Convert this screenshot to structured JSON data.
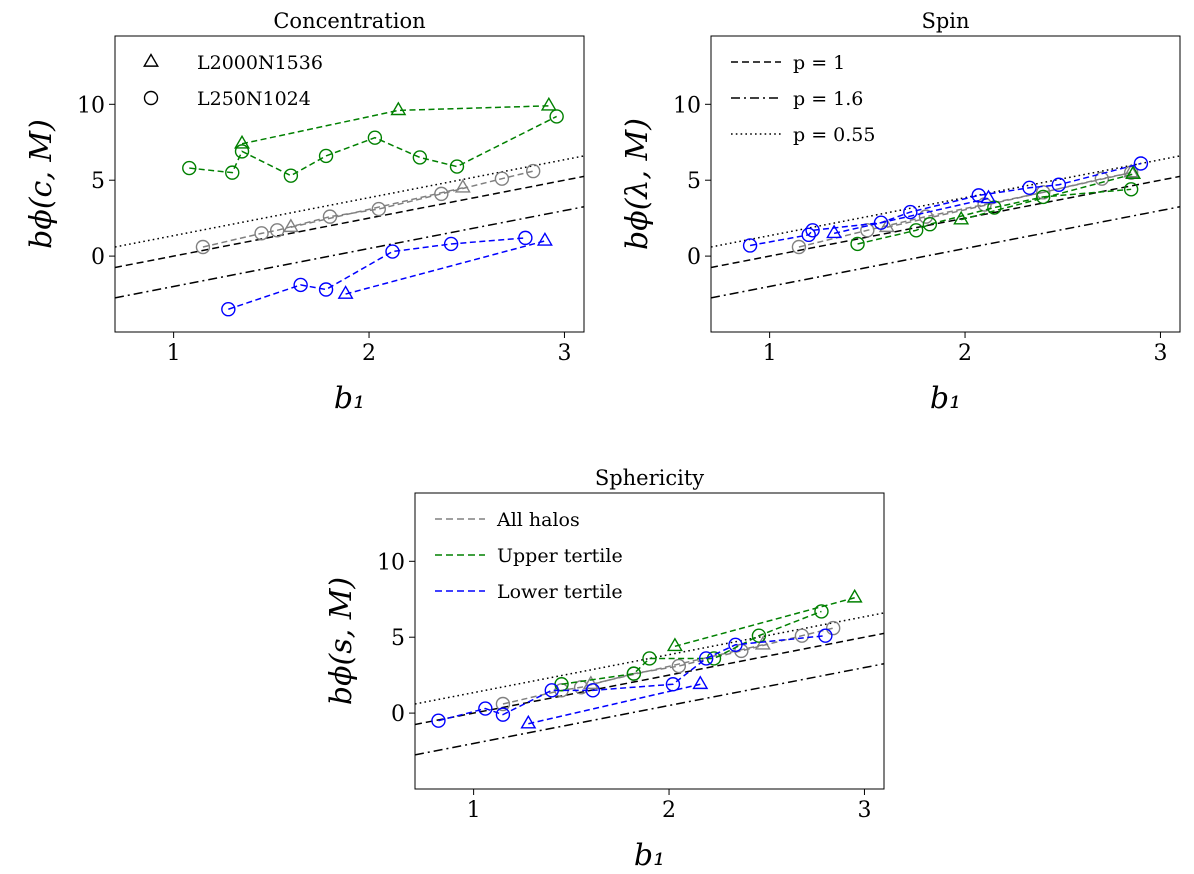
{
  "chart_data": [
    {
      "type": "line",
      "title": "Concentration",
      "xlabel": "b₁",
      "ylabel": "bϕ(c, M)",
      "xlim": [
        0.7,
        3.1
      ],
      "ylim": [
        -5,
        14.5
      ],
      "xticks": [
        1,
        2,
        3
      ],
      "yticks": [
        0,
        5,
        10
      ],
      "grid": false,
      "legend": {
        "position": "top-left",
        "entries": [
          {
            "label": "L2000N1536",
            "marker": "triangle"
          },
          {
            "label": "L250N1024",
            "marker": "circle"
          }
        ]
      },
      "reference_lines": [
        {
          "label": "p = 1",
          "style": "dashed",
          "slope": 2.5,
          "intercept": -2.5,
          "color": "#000000"
        },
        {
          "label": "p = 1.6",
          "style": "dashdot",
          "slope": 2.5,
          "intercept": -4.5,
          "color": "#000000"
        },
        {
          "label": "p = 0.55",
          "style": "dotted",
          "slope": 2.5,
          "intercept": -1.15,
          "color": "#000000"
        }
      ],
      "series": [
        {
          "color": "#808080",
          "marker": "circle",
          "x": [
            1.15,
            1.45,
            1.53,
            1.8,
            2.05,
            2.37,
            2.68,
            2.84
          ],
          "y": [
            0.6,
            1.5,
            1.7,
            2.6,
            3.1,
            4.1,
            5.1,
            5.6
          ]
        },
        {
          "color": "#808080",
          "marker": "triangle",
          "x": [
            1.6,
            2.48
          ],
          "y": [
            1.9,
            4.5
          ]
        },
        {
          "color": "#008000",
          "marker": "circle",
          "x": [
            1.08,
            1.3,
            1.35,
            1.6,
            1.78,
            2.03,
            2.26,
            2.45,
            2.96
          ],
          "y": [
            5.8,
            5.5,
            6.9,
            5.3,
            6.6,
            7.8,
            6.5,
            5.9,
            9.2
          ]
        },
        {
          "color": "#008000",
          "marker": "triangle",
          "x": [
            1.35,
            2.15,
            2.92
          ],
          "y": [
            7.4,
            9.6,
            9.9
          ]
        },
        {
          "color": "#0000ff",
          "marker": "circle",
          "x": [
            1.28,
            1.65,
            1.78,
            2.12,
            2.42,
            2.8
          ],
          "y": [
            -3.5,
            -1.9,
            -2.2,
            0.3,
            0.8,
            1.2
          ]
        },
        {
          "color": "#0000ff",
          "marker": "triangle",
          "x": [
            1.88,
            2.9
          ],
          "y": [
            -2.5,
            1.0
          ]
        }
      ]
    },
    {
      "type": "line",
      "title": "Spin",
      "xlabel": "b₁",
      "ylabel": "bϕ(λ, M)",
      "xlim": [
        0.7,
        3.1
      ],
      "ylim": [
        -5,
        14.5
      ],
      "xticks": [
        1,
        2,
        3
      ],
      "yticks": [
        0,
        5,
        10
      ],
      "grid": false,
      "legend": {
        "position": "top-left",
        "entries": [
          {
            "label": "p = 1",
            "style": "dashed"
          },
          {
            "label": "p = 1.6",
            "style": "dashdot"
          },
          {
            "label": "p = 0.55",
            "style": "dotted"
          }
        ]
      },
      "reference_lines": [
        {
          "label": "p = 1",
          "style": "dashed",
          "slope": 2.5,
          "intercept": -2.5,
          "color": "#000000"
        },
        {
          "label": "p = 1.6",
          "style": "dashdot",
          "slope": 2.5,
          "intercept": -4.5,
          "color": "#000000"
        },
        {
          "label": "p = 0.55",
          "style": "dotted",
          "slope": 2.5,
          "intercept": -1.15,
          "color": "#000000"
        }
      ],
      "series": [
        {
          "color": "#808080",
          "marker": "circle",
          "x": [
            1.15,
            1.5,
            1.8,
            2.1,
            2.4,
            2.7,
            2.85
          ],
          "y": [
            0.6,
            1.7,
            2.6,
            3.4,
            4.2,
            5.1,
            5.5
          ]
        },
        {
          "color": "#808080",
          "marker": "triangle",
          "x": [
            1.6,
            2.85
          ],
          "y": [
            1.9,
            5.5
          ]
        },
        {
          "color": "#008000",
          "marker": "circle",
          "x": [
            1.45,
            1.75,
            1.82,
            2.15,
            2.4,
            2.85
          ],
          "y": [
            0.8,
            1.7,
            2.1,
            3.2,
            3.9,
            4.4
          ]
        },
        {
          "color": "#008000",
          "marker": "triangle",
          "x": [
            1.98,
            2.86
          ],
          "y": [
            2.4,
            5.4
          ]
        },
        {
          "color": "#0000ff",
          "marker": "circle",
          "x": [
            0.9,
            1.2,
            1.22,
            1.57,
            1.72,
            2.07,
            2.33,
            2.48,
            2.9
          ],
          "y": [
            0.7,
            1.4,
            1.7,
            2.2,
            2.9,
            4.0,
            4.5,
            4.7,
            6.1
          ]
        },
        {
          "color": "#0000ff",
          "marker": "triangle",
          "x": [
            1.33,
            2.12
          ],
          "y": [
            1.5,
            3.8
          ]
        }
      ]
    },
    {
      "type": "line",
      "title": "Sphericity",
      "xlabel": "b₁",
      "ylabel": "bϕ(s, M)",
      "xlim": [
        0.7,
        3.1
      ],
      "ylim": [
        -5,
        14.5
      ],
      "xticks": [
        1,
        2,
        3
      ],
      "yticks": [
        0,
        5,
        10
      ],
      "grid": false,
      "legend": {
        "position": "top-left",
        "entries": [
          {
            "label": "All halos",
            "color": "#808080",
            "style": "dashed"
          },
          {
            "label": "Upper tertile",
            "color": "#008000",
            "style": "dashed"
          },
          {
            "label": "Lower tertile",
            "color": "#0000ff",
            "style": "dashed"
          }
        ]
      },
      "reference_lines": [
        {
          "label": "p = 1",
          "style": "dashed",
          "slope": 2.5,
          "intercept": -2.5,
          "color": "#000000"
        },
        {
          "label": "p = 1.6",
          "style": "dashdot",
          "slope": 2.5,
          "intercept": -4.5,
          "color": "#000000"
        },
        {
          "label": "p = 0.55",
          "style": "dotted",
          "slope": 2.5,
          "intercept": -1.15,
          "color": "#000000"
        }
      ],
      "series": [
        {
          "color": "#808080",
          "marker": "circle",
          "x": [
            1.15,
            1.45,
            1.55,
            1.82,
            2.05,
            2.37,
            2.68,
            2.84
          ],
          "y": [
            0.6,
            1.5,
            1.7,
            2.6,
            3.1,
            4.1,
            5.1,
            5.6
          ]
        },
        {
          "color": "#808080",
          "marker": "triangle",
          "x": [
            1.6,
            2.48
          ],
          "y": [
            1.9,
            4.5
          ]
        },
        {
          "color": "#008000",
          "marker": "circle",
          "x": [
            1.45,
            1.82,
            1.9,
            2.23,
            2.46,
            2.78
          ],
          "y": [
            1.9,
            2.6,
            3.6,
            3.6,
            5.1,
            6.7
          ]
        },
        {
          "color": "#008000",
          "marker": "triangle",
          "x": [
            2.03,
            2.95
          ],
          "y": [
            4.4,
            7.6
          ]
        },
        {
          "color": "#0000ff",
          "marker": "circle",
          "x": [
            0.82,
            1.06,
            1.15,
            1.4,
            1.61,
            2.02,
            2.19,
            2.34,
            2.8
          ],
          "y": [
            -0.5,
            0.3,
            -0.1,
            1.5,
            1.5,
            1.9,
            3.6,
            4.5,
            5.1
          ]
        },
        {
          "color": "#0000ff",
          "marker": "triangle",
          "x": [
            1.28,
            2.16
          ],
          "y": [
            -0.7,
            1.9
          ]
        }
      ]
    }
  ]
}
